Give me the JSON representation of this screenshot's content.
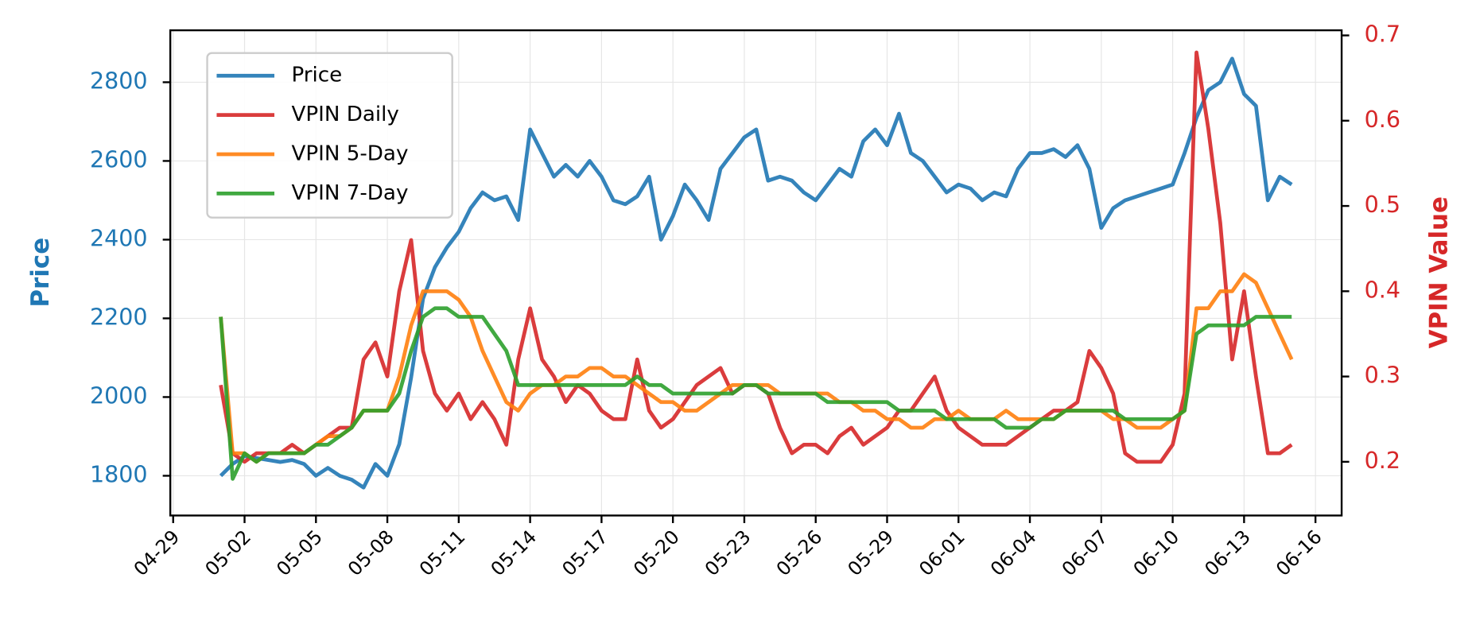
{
  "chart_data": {
    "type": "line",
    "ylabel": "Price",
    "y2label": "VPIN Value",
    "x": [
      2,
      2.5,
      3,
      3.5,
      4,
      4.5,
      5,
      5.5,
      6,
      6.5,
      7,
      7.5,
      8,
      8.5,
      9,
      9.5,
      10,
      10.5,
      11,
      11.5,
      12,
      12.5,
      13,
      13.5,
      14,
      14.5,
      15,
      15.5,
      16,
      16.5,
      17,
      17.5,
      18,
      18.5,
      19,
      19.5,
      20,
      20.5,
      21,
      21.5,
      22,
      22.5,
      23,
      23.5,
      24,
      24.5,
      25,
      25.5,
      26,
      26.5,
      27,
      27.5,
      28,
      28.5,
      29,
      29.5,
      30,
      30.5,
      31,
      31.5,
      32,
      32.5,
      33,
      33.5,
      34,
      34.5,
      35,
      35.5,
      36,
      36.5,
      37,
      37.5,
      38,
      38.5,
      39,
      39.5,
      40,
      40.5,
      41,
      41.5,
      42,
      42.5,
      43,
      43.5,
      44,
      44.5,
      45,
      45.5,
      46,
      46.5,
      47
    ],
    "xlim": [
      -0.12,
      49.1
    ],
    "xticks": [
      {
        "value": 0,
        "label": "04-29"
      },
      {
        "value": 3,
        "label": "05-02"
      },
      {
        "value": 6,
        "label": "05-05"
      },
      {
        "value": 9,
        "label": "05-08"
      },
      {
        "value": 12,
        "label": "05-11"
      },
      {
        "value": 15,
        "label": "05-14"
      },
      {
        "value": 18,
        "label": "05-17"
      },
      {
        "value": 21,
        "label": "05-20"
      },
      {
        "value": 24,
        "label": "05-23"
      },
      {
        "value": 27,
        "label": "05-26"
      },
      {
        "value": 30,
        "label": "05-29"
      },
      {
        "value": 33,
        "label": "06-01"
      },
      {
        "value": 36,
        "label": "06-04"
      },
      {
        "value": 39,
        "label": "06-07"
      },
      {
        "value": 42,
        "label": "06-10"
      },
      {
        "value": 45,
        "label": "06-13"
      },
      {
        "value": 48,
        "label": "06-16"
      }
    ],
    "ylim": [
      1699,
      2932
    ],
    "yticks": [
      1800,
      2000,
      2200,
      2400,
      2600,
      2800
    ],
    "y2lim": [
      0.137,
      0.706
    ],
    "y2ticks": [
      0.2,
      0.3,
      0.4,
      0.5,
      0.6,
      0.7
    ],
    "grid": true,
    "legend": "upper left",
    "series": [
      {
        "name": "Price",
        "color": "#1f77b4",
        "values": [
          1800,
          1830,
          1850,
          1845,
          1840,
          1835,
          1840,
          1830,
          1800,
          1820,
          1800,
          1790,
          1770,
          1830,
          1800,
          1880,
          2050,
          2250,
          2330,
          2380,
          2420,
          2480,
          2520,
          2500,
          2510,
          2450,
          2680,
          2620,
          2560,
          2590,
          2560,
          2600,
          2560,
          2500,
          2490,
          2510,
          2560,
          2400,
          2460,
          2540,
          2500,
          2450,
          2580,
          2620,
          2660,
          2680,
          2550,
          2560,
          2550,
          2520,
          2500,
          2540,
          2580,
          2560,
          2650,
          2680,
          2640,
          2720,
          2620,
          2600,
          2560,
          2520,
          2540,
          2530,
          2500,
          2520,
          2510,
          2580,
          2620,
          2620,
          2630,
          2610,
          2640,
          2580,
          2430,
          2480,
          2500,
          2510,
          2520,
          2530,
          2540,
          2620,
          2710,
          2780,
          2800,
          2860,
          2770,
          2740,
          2500,
          2560,
          2540
        ]
      },
      {
        "name": "VPIN Daily",
        "color": "#d62728",
        "axis": "y2",
        "values": [
          0.29,
          0.21,
          0.2,
          0.21,
          0.21,
          0.21,
          0.22,
          0.21,
          0.22,
          0.23,
          0.24,
          0.24,
          0.32,
          0.34,
          0.3,
          0.4,
          0.46,
          0.33,
          0.28,
          0.26,
          0.28,
          0.25,
          0.27,
          0.25,
          0.22,
          0.32,
          0.38,
          0.32,
          0.3,
          0.27,
          0.29,
          0.28,
          0.26,
          0.25,
          0.25,
          0.32,
          0.26,
          0.24,
          0.25,
          0.27,
          0.29,
          0.3,
          0.31,
          0.28,
          0.29,
          0.29,
          0.28,
          0.24,
          0.21,
          0.22,
          0.22,
          0.21,
          0.23,
          0.24,
          0.22,
          0.23,
          0.24,
          0.26,
          0.26,
          0.28,
          0.3,
          0.26,
          0.24,
          0.23,
          0.22,
          0.22,
          0.22,
          0.23,
          0.24,
          0.25,
          0.26,
          0.26,
          0.27,
          0.33,
          0.31,
          0.28,
          0.21,
          0.2,
          0.2,
          0.2,
          0.22,
          0.28,
          0.68,
          0.59,
          0.48,
          0.32,
          0.4,
          0.3,
          0.21,
          0.21,
          0.22
        ]
      },
      {
        "name": "VPIN 5-Day",
        "color": "#ff7f0e",
        "axis": "y2",
        "values": [
          0.37,
          0.21,
          0.21,
          0.2,
          0.21,
          0.21,
          0.21,
          0.21,
          0.22,
          0.23,
          0.23,
          0.24,
          0.26,
          0.26,
          0.26,
          0.3,
          0.36,
          0.4,
          0.4,
          0.4,
          0.39,
          0.37,
          0.33,
          0.3,
          0.27,
          0.26,
          0.28,
          0.29,
          0.29,
          0.3,
          0.3,
          0.31,
          0.31,
          0.3,
          0.3,
          0.29,
          0.28,
          0.27,
          0.27,
          0.26,
          0.26,
          0.27,
          0.28,
          0.29,
          0.29,
          0.29,
          0.29,
          0.28,
          0.28,
          0.28,
          0.28,
          0.28,
          0.27,
          0.27,
          0.26,
          0.26,
          0.25,
          0.25,
          0.24,
          0.24,
          0.25,
          0.25,
          0.26,
          0.25,
          0.25,
          0.25,
          0.26,
          0.25,
          0.25,
          0.25,
          0.25,
          0.26,
          0.26,
          0.26,
          0.26,
          0.25,
          0.25,
          0.24,
          0.24,
          0.24,
          0.25,
          0.26,
          0.38,
          0.38,
          0.4,
          0.4,
          0.42,
          0.41,
          0.38,
          0.35,
          0.32
        ]
      },
      {
        "name": "VPIN 7-Day",
        "color": "#2ca02c",
        "axis": "y2",
        "values": [
          0.37,
          0.18,
          0.21,
          0.2,
          0.21,
          0.21,
          0.21,
          0.21,
          0.22,
          0.22,
          0.23,
          0.24,
          0.26,
          0.26,
          0.26,
          0.28,
          0.33,
          0.37,
          0.38,
          0.38,
          0.37,
          0.37,
          0.37,
          0.35,
          0.33,
          0.29,
          0.29,
          0.29,
          0.29,
          0.29,
          0.29,
          0.29,
          0.29,
          0.29,
          0.29,
          0.3,
          0.29,
          0.29,
          0.28,
          0.28,
          0.28,
          0.28,
          0.28,
          0.28,
          0.29,
          0.29,
          0.28,
          0.28,
          0.28,
          0.28,
          0.28,
          0.27,
          0.27,
          0.27,
          0.27,
          0.27,
          0.27,
          0.26,
          0.26,
          0.26,
          0.26,
          0.25,
          0.25,
          0.25,
          0.25,
          0.25,
          0.24,
          0.24,
          0.24,
          0.25,
          0.25,
          0.26,
          0.26,
          0.26,
          0.26,
          0.26,
          0.25,
          0.25,
          0.25,
          0.25,
          0.25,
          0.26,
          0.35,
          0.36,
          0.36,
          0.36,
          0.36,
          0.37,
          0.37,
          0.37,
          0.37
        ]
      }
    ]
  }
}
